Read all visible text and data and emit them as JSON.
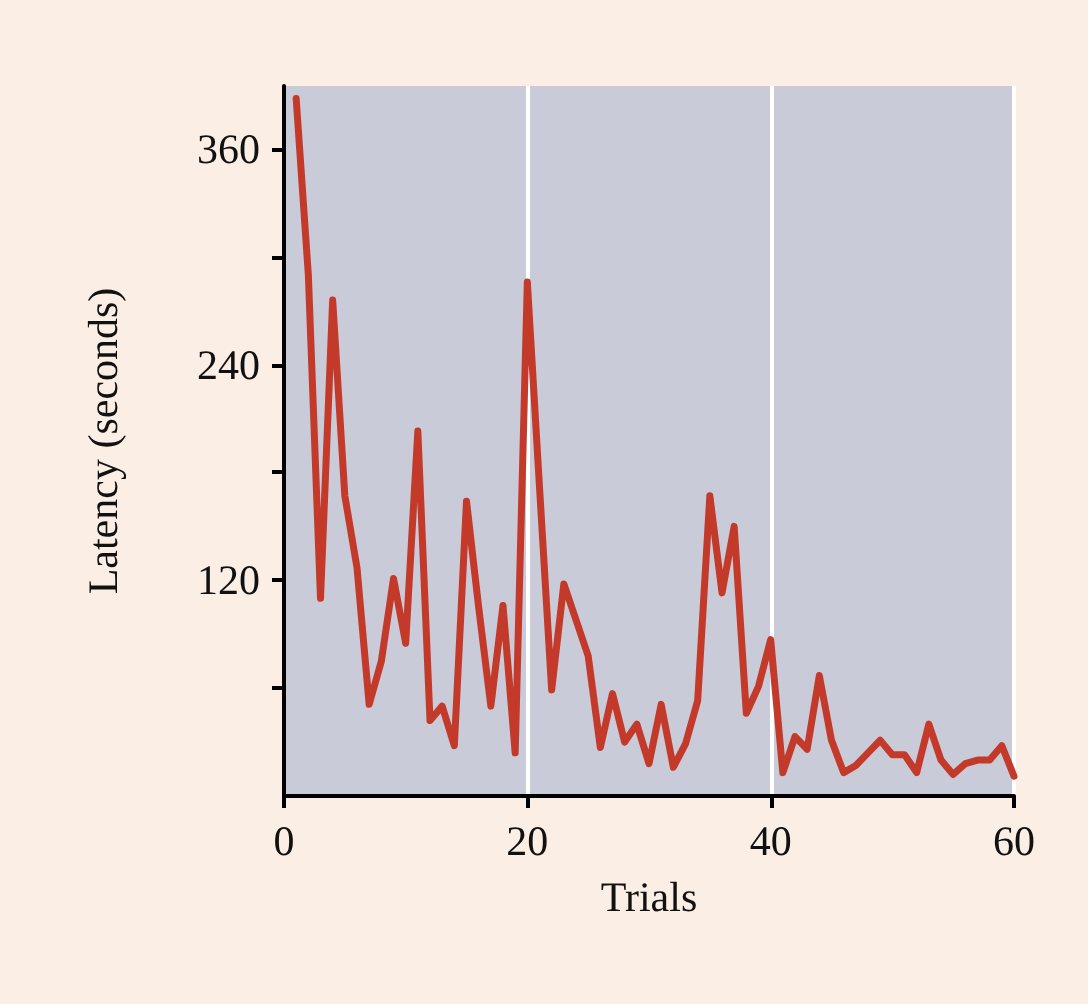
{
  "chart_data": {
    "type": "line",
    "xlabel": "Trials",
    "ylabel": "Latency (seconds)",
    "x": [
      1,
      2,
      3,
      4,
      5,
      6,
      7,
      8,
      9,
      10,
      11,
      12,
      13,
      14,
      15,
      16,
      17,
      18,
      19,
      20,
      21,
      22,
      23,
      24,
      25,
      26,
      27,
      28,
      29,
      30,
      31,
      32,
      33,
      34,
      35,
      36,
      37,
      38,
      39,
      40,
      41,
      42,
      43,
      44,
      45,
      46,
      47,
      48,
      49,
      50,
      51,
      52,
      53,
      54,
      55,
      56,
      57,
      58,
      59,
      60
    ],
    "series": [
      {
        "color": "#c33a2a",
        "values": [
          388,
          290,
          110,
          276,
          167,
          127,
          51,
          75,
          121,
          85,
          203,
          42,
          50,
          28,
          164,
          105,
          50,
          106,
          24,
          286,
          172,
          59,
          118,
          98,
          78,
          27,
          57,
          30,
          40,
          18,
          51,
          16,
          29,
          53,
          167,
          113,
          150,
          46,
          61,
          87,
          13,
          33,
          26,
          67,
          31,
          13,
          17,
          24,
          31,
          23,
          23,
          13,
          40,
          20,
          12,
          18,
          20,
          20,
          28,
          11
        ]
      }
    ],
    "xlim": [
      0,
      60
    ],
    "xticks": [
      0,
      20,
      40,
      60
    ],
    "ylim": [
      0,
      395
    ],
    "yticks": [
      {
        "value": 60,
        "label": null
      },
      120,
      {
        "value": 180,
        "label": null
      },
      240,
      {
        "value": 300,
        "label": null
      },
      360
    ],
    "grid": "x",
    "marker": "none",
    "line_style": "solid"
  }
}
